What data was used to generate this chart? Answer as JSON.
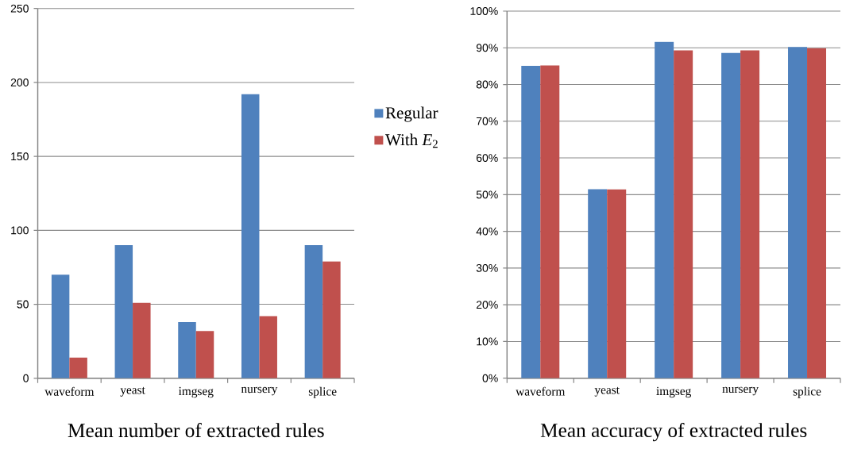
{
  "chart_data": [
    {
      "type": "bar",
      "title": "Mean number of extracted rules",
      "categories": [
        "waveform",
        "yeast",
        "imgseg",
        "nursery",
        "splice"
      ],
      "series": [
        {
          "name": "Regular",
          "color": "#4f81bd",
          "values": [
            70,
            90,
            38,
            192,
            90
          ]
        },
        {
          "name": "With *E*$_{2}$",
          "color": "#c0504d",
          "values": [
            14,
            51,
            32,
            42,
            79
          ]
        }
      ],
      "ylim": [
        0,
        250
      ],
      "yticks": [
        0,
        50,
        100,
        150,
        200,
        250
      ],
      "grid": "y",
      "legend": "right"
    },
    {
      "type": "bar",
      "title": "Mean accuracy of extracted rules",
      "categories": [
        "waveform",
        "yeast",
        "imgseg",
        "nursery",
        "splice"
      ],
      "series": [
        {
          "color": "#4f81bd",
          "values": [
            85.1,
            51.5,
            91.6,
            88.6,
            90.2
          ]
        },
        {
          "color": "#c0504d",
          "values": [
            85.2,
            51.4,
            89.3,
            89.3,
            89.9
          ]
        }
      ],
      "ylim": [
        0,
        100
      ],
      "yticks": [
        {
          "value": 0,
          "label": "0%"
        },
        {
          "value": 10,
          "label": "10%"
        },
        {
          "value": 20,
          "label": "20%"
        },
        {
          "value": 30,
          "label": "30%"
        },
        {
          "value": 40,
          "label": "40%"
        },
        {
          "value": 50,
          "label": "50%"
        },
        {
          "value": 60,
          "label": "60%"
        },
        {
          "value": 70,
          "label": "70%"
        },
        {
          "value": 80,
          "label": "80%"
        },
        {
          "value": 90,
          "label": "90%"
        },
        {
          "value": 100,
          "label": "100%"
        }
      ],
      "grid": "y"
    }
  ]
}
